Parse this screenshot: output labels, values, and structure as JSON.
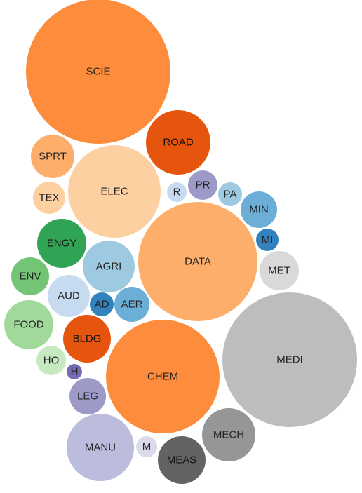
{
  "chart_data": {
    "type": "bubble",
    "title": "",
    "legend": "none",
    "nodes": [
      {
        "label": "SCIE",
        "color": "#fd8d3c",
        "text_color": "#222222"
      },
      {
        "label": "ROAD",
        "color": "#e6550d",
        "text_color": "#111111"
      },
      {
        "label": "SPRT",
        "color": "#fdae6b",
        "text_color": "#222222"
      },
      {
        "label": "ELEC",
        "color": "#fdd0a2",
        "text_color": "#222222"
      },
      {
        "label": "TEX",
        "color": "#fdd0a2",
        "text_color": "#222222"
      },
      {
        "label": "R",
        "color": "#c6dbef",
        "text_color": "#222222"
      },
      {
        "label": "PR",
        "color": "#9e9ac8",
        "text_color": "#222222"
      },
      {
        "label": "PA",
        "color": "#9ecae1",
        "text_color": "#222222"
      },
      {
        "label": "MIN",
        "color": "#6baed6",
        "text_color": "#222222"
      },
      {
        "label": "MI",
        "color": "#3182bd",
        "text_color": "#222222"
      },
      {
        "label": "ENGY",
        "color": "#31a354",
        "text_color": "#111111"
      },
      {
        "label": "DATA",
        "color": "#fdae6b",
        "text_color": "#222222"
      },
      {
        "label": "AGRI",
        "color": "#9ecae1",
        "text_color": "#222222"
      },
      {
        "label": "MET",
        "color": "#d9d9d9",
        "text_color": "#222222"
      },
      {
        "label": "ENV",
        "color": "#74c476",
        "text_color": "#222222"
      },
      {
        "label": "AUD",
        "color": "#c6dbef",
        "text_color": "#222222"
      },
      {
        "label": "AD",
        "color": "#3182bd",
        "text_color": "#222222"
      },
      {
        "label": "AER",
        "color": "#6baed6",
        "text_color": "#222222"
      },
      {
        "label": "FOOD",
        "color": "#a1d99b",
        "text_color": "#222222"
      },
      {
        "label": "BLDG",
        "color": "#e6550d",
        "text_color": "#111111"
      },
      {
        "label": "MEDI",
        "color": "#bdbdbd",
        "text_color": "#222222"
      },
      {
        "label": "HO",
        "color": "#c7e9c0",
        "text_color": "#222222"
      },
      {
        "label": "H",
        "color": "#756bb1",
        "text_color": "#222222"
      },
      {
        "label": "CHEM",
        "color": "#fd8d3c",
        "text_color": "#222222"
      },
      {
        "label": "LEG",
        "color": "#9e9ac8",
        "text_color": "#222222"
      },
      {
        "label": "MECH",
        "color": "#969696",
        "text_color": "#222222"
      },
      {
        "label": "MANU",
        "color": "#bcbddc",
        "text_color": "#222222"
      },
      {
        "label": "M",
        "color": "#dadaeb",
        "text_color": "#222222"
      },
      {
        "label": "MEAS",
        "color": "#636363",
        "text_color": "#111111"
      }
    ]
  }
}
